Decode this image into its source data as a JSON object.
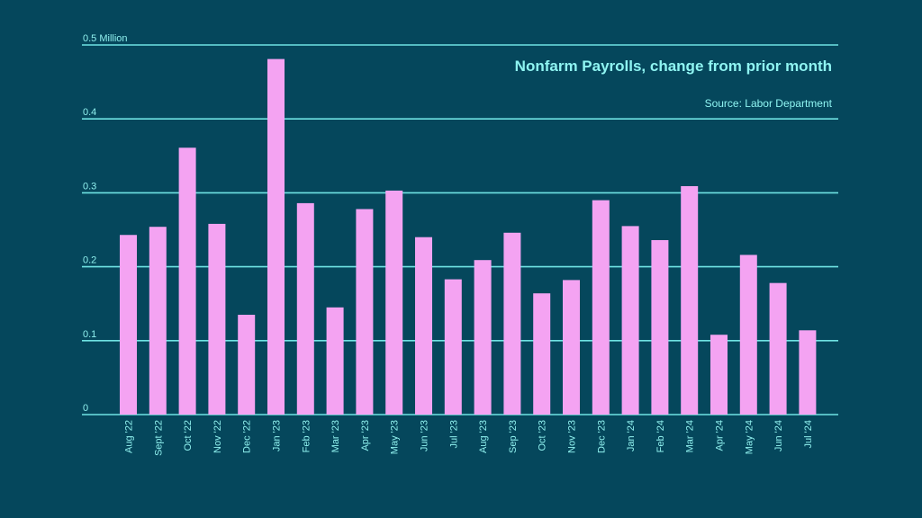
{
  "chart_data": {
    "type": "bar",
    "title": "Nonfarm Payrolls, change from prior month",
    "source": "Source: Labor Department",
    "ylabel": "",
    "xlabel": "",
    "ylim": [
      0,
      0.5
    ],
    "yticks": [
      0,
      0.1,
      0.2,
      0.3,
      0.4,
      0.5
    ],
    "ytick_labels": [
      "0",
      "0.1",
      "0.2",
      "0.3",
      "0.4",
      "0.5 Million"
    ],
    "grid": true,
    "categories": [
      "Aug '22",
      "Sept '22",
      "Oct '22",
      "Nov '22",
      "Dec '22",
      "Jan '23",
      "Feb '23",
      "Mar '23",
      "Apr '23",
      "May '23",
      "Jun '23",
      "Jul '23",
      "Aug '23",
      "Sep '23",
      "Oct '23",
      "Nov '23",
      "Dec '23",
      "Jan '24",
      "Feb '24",
      "Mar '24",
      "Apr '24",
      "May '24",
      "Jun '24",
      "Jul '24"
    ],
    "values": [
      0.243,
      0.254,
      0.361,
      0.258,
      0.135,
      0.481,
      0.286,
      0.145,
      0.278,
      0.303,
      0.24,
      0.183,
      0.209,
      0.246,
      0.164,
      0.182,
      0.29,
      0.255,
      0.236,
      0.309,
      0.108,
      0.216,
      0.178,
      0.114
    ],
    "colors": {
      "background": "#05475c",
      "bar": "#f4a3f2",
      "grid": "#6fe3e3",
      "text": "#8ff5f2"
    }
  }
}
